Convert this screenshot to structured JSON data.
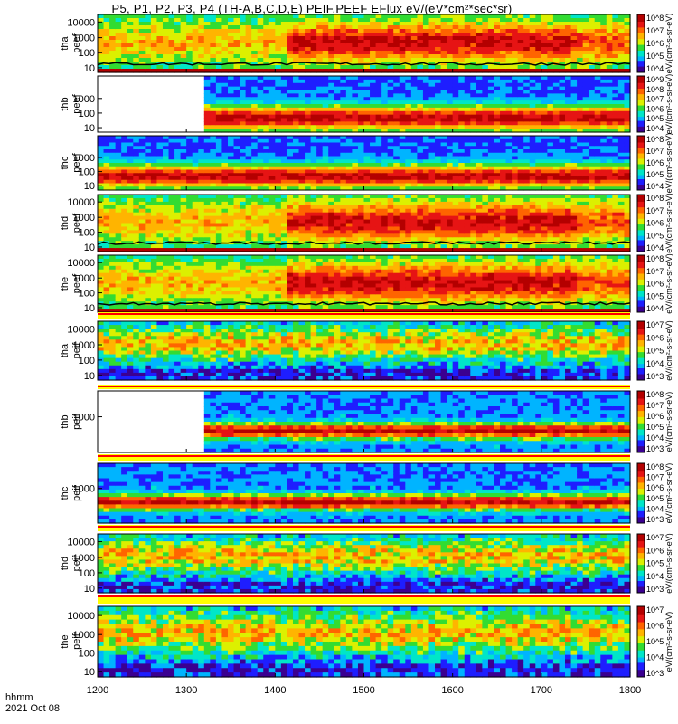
{
  "title": "P5, P1, P2, P3, P4 (TH-A,B,C,D,E) PEIF,PEEF EFlux eV/(eV*cm²*sec*sr)",
  "x_axis_label_line1": "hhmm",
  "x_axis_label_line2": "2021 Oct 08",
  "colors": {
    "background": "#ffffff",
    "colormap": [
      "#3b0091",
      "#1e1eff",
      "#00b4ff",
      "#00e6c8",
      "#32dc32",
      "#dcf000",
      "#ffb400",
      "#ff6400",
      "#e61414",
      "#b40000"
    ],
    "black_line": "#000000",
    "flag_red": "#ff0000",
    "flag_yellow": "#ffff00"
  },
  "chart_data": [
    {
      "type": "heatmap",
      "panel": "tha-peef",
      "ylabel_line1": "tha",
      "ylabel_line2": "peef",
      "x_tick_labels": [
        "1200",
        "1300",
        "1400",
        "1500",
        "1600",
        "1700",
        "1800"
      ],
      "x_range": [
        1200,
        1800
      ],
      "y_tick_labels": [
        "10",
        "100",
        "1000",
        "10000"
      ],
      "y_scale": "log",
      "colorbar_tick_labels": [
        "10^4",
        "10^5",
        "10^6",
        "10^7",
        "10^8"
      ],
      "colorbar_unit": "eV/(cm²-s-sr-eV)"
    },
    {
      "type": "heatmap",
      "panel": "thb-peef",
      "ylabel_line1": "thb",
      "ylabel_line2": "peef",
      "x_tick_labels": [
        "1200",
        "1300",
        "1400",
        "1500",
        "1600",
        "1700",
        "1800"
      ],
      "x_range": [
        1200,
        1800
      ],
      "y_tick_labels": [
        "10",
        "100",
        "1000"
      ],
      "y_scale": "log",
      "no_data_until": "1318",
      "colorbar_tick_labels": [
        "10^4",
        "10^5",
        "10^6",
        "10^7",
        "10^8",
        "10^9"
      ],
      "colorbar_unit": "eV/(cm²-s-sr-eV)"
    },
    {
      "type": "heatmap",
      "panel": "thc-peef",
      "ylabel_line1": "thc",
      "ylabel_line2": "peef",
      "x_tick_labels": [
        "1200",
        "1300",
        "1400",
        "1500",
        "1600",
        "1700",
        "1800"
      ],
      "x_range": [
        1200,
        1800
      ],
      "y_tick_labels": [
        "10",
        "100",
        "1000"
      ],
      "y_scale": "log",
      "colorbar_tick_labels": [
        "10^4",
        "10^5",
        "10^6",
        "10^7",
        "10^8"
      ],
      "colorbar_unit": "eV/(cm²-s-sr-eV)"
    },
    {
      "type": "heatmap",
      "panel": "thd-peef",
      "ylabel_line1": "thd",
      "ylabel_line2": "peef",
      "x_tick_labels": [
        "1200",
        "1300",
        "1400",
        "1500",
        "1600",
        "1700",
        "1800"
      ],
      "x_range": [
        1200,
        1800
      ],
      "y_tick_labels": [
        "10",
        "100",
        "1000",
        "10000"
      ],
      "y_scale": "log",
      "colorbar_tick_labels": [
        "10^4",
        "10^5",
        "10^6",
        "10^7",
        "10^8"
      ],
      "colorbar_unit": "eV/(cm²-s-sr-eV)"
    },
    {
      "type": "heatmap",
      "panel": "the-peef",
      "ylabel_line1": "the",
      "ylabel_line2": "peef",
      "x_tick_labels": [
        "1200",
        "1300",
        "1400",
        "1500",
        "1600",
        "1700",
        "1800"
      ],
      "x_range": [
        1200,
        1800
      ],
      "y_tick_labels": [
        "10",
        "100",
        "1000",
        "10000"
      ],
      "y_scale": "log",
      "colorbar_tick_labels": [
        "10^4",
        "10^5",
        "10^6",
        "10^7",
        "10^8"
      ],
      "colorbar_unit": "eV/(cm²-s-sr-eV)"
    },
    {
      "type": "heatmap",
      "panel": "tha-peif",
      "ylabel_line1": "tha",
      "ylabel_line2": "peif",
      "x_tick_labels": [
        "1200",
        "1300",
        "1400",
        "1500",
        "1600",
        "1700",
        "1800"
      ],
      "x_range": [
        1200,
        1800
      ],
      "y_tick_labels": [
        "10",
        "100",
        "1000",
        "10000"
      ],
      "y_scale": "log",
      "colorbar_tick_labels": [
        "10^3",
        "10^4",
        "10^5",
        "10^6",
        "10^7"
      ],
      "colorbar_unit": "eV/(cm²-s-sr-eV)"
    },
    {
      "type": "heatmap",
      "panel": "thb-peif",
      "ylabel_line1": "thb",
      "ylabel_line2": "peif",
      "x_tick_labels": [
        "1200",
        "1300",
        "1400",
        "1500",
        "1600",
        "1700",
        "1800"
      ],
      "x_range": [
        1200,
        1800
      ],
      "y_tick_labels": [
        "1000"
      ],
      "y_scale": "log",
      "no_data_until": "1318",
      "colorbar_tick_labels": [
        "10^3",
        "10^4",
        "10^5",
        "10^6",
        "10^7",
        "10^8"
      ],
      "colorbar_unit": "eV/(cm²-s-sr-eV)"
    },
    {
      "type": "heatmap",
      "panel": "thc-peif",
      "ylabel_line1": "thc",
      "ylabel_line2": "peif",
      "x_tick_labels": [
        "1200",
        "1300",
        "1400",
        "1500",
        "1600",
        "1700",
        "1800"
      ],
      "x_range": [
        1200,
        1800
      ],
      "y_tick_labels": [
        "1000"
      ],
      "y_scale": "log",
      "colorbar_tick_labels": [
        "10^3",
        "10^4",
        "10^5",
        "10^6",
        "10^7",
        "10^8"
      ],
      "colorbar_unit": "eV/(cm²-s-sr-eV)"
    },
    {
      "type": "heatmap",
      "panel": "thd-peif",
      "ylabel_line1": "thd",
      "ylabel_line2": "peif",
      "x_tick_labels": [
        "1200",
        "1300",
        "1400",
        "1500",
        "1600",
        "1700",
        "1800"
      ],
      "x_range": [
        1200,
        1800
      ],
      "y_tick_labels": [
        "10",
        "100",
        "1000",
        "10000"
      ],
      "y_scale": "log",
      "colorbar_tick_labels": [
        "10^3",
        "10^4",
        "10^5",
        "10^6",
        "10^7"
      ],
      "colorbar_unit": "eV/(cm²-s-sr-eV)"
    },
    {
      "type": "heatmap",
      "panel": "the-peif",
      "ylabel_line1": "the",
      "ylabel_line2": "peif",
      "x_tick_labels": [
        "1200",
        "1300",
        "1400",
        "1500",
        "1600",
        "1700",
        "1800"
      ],
      "x_range": [
        1200,
        1800
      ],
      "y_tick_labels": [
        "10",
        "100",
        "1000",
        "10000"
      ],
      "y_scale": "log",
      "colorbar_tick_labels": [
        "10^3",
        "10^4",
        "10^5",
        "10^6",
        "10^7"
      ],
      "colorbar_unit": "eV/(cm²-s-sr-eV)"
    }
  ]
}
